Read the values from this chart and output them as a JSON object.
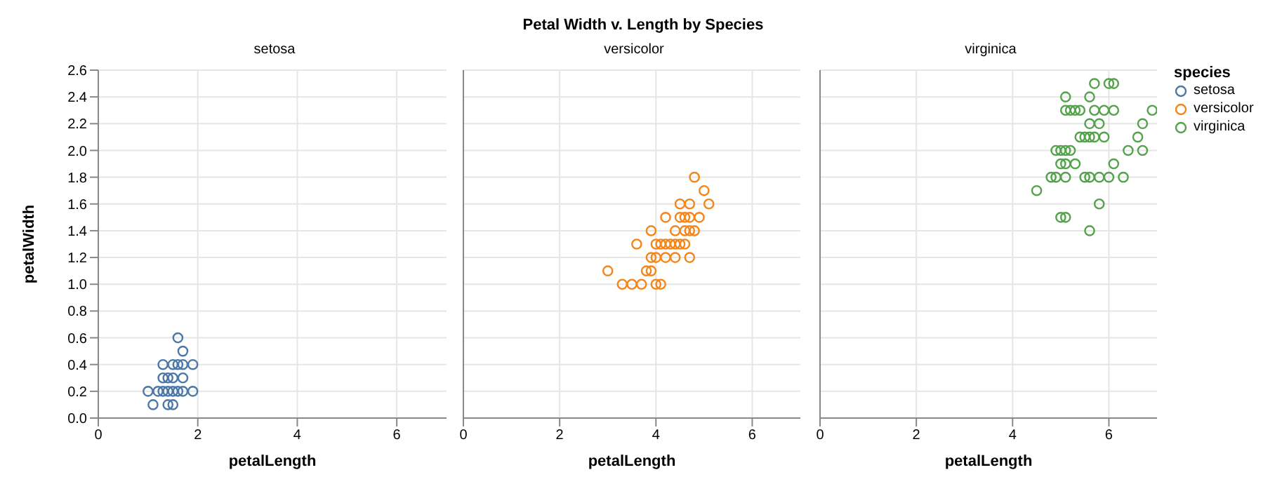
{
  "chart_data": [
    {
      "type": "scatter",
      "subtitle": "setosa",
      "xlabel": "petalLength",
      "ylabel": "petalWidth",
      "xlim": [
        0,
        7
      ],
      "xticks": [
        0,
        2,
        4,
        6
      ],
      "ylim": [
        0,
        2.6
      ],
      "yticks": [
        {
          "value": 0,
          "label": "0.0"
        },
        {
          "value": 0.2,
          "label": "0.2"
        },
        {
          "value": 0.4,
          "label": "0.4"
        },
        {
          "value": 0.6,
          "label": "0.6"
        },
        {
          "value": 0.8,
          "label": "0.8"
        },
        {
          "value": 1,
          "label": "1.0"
        },
        {
          "value": 1.2,
          "label": "1.2"
        },
        {
          "value": 1.4,
          "label": "1.4"
        },
        {
          "value": 1.6,
          "label": "1.6"
        },
        {
          "value": 1.8,
          "label": "1.8"
        },
        {
          "value": 2,
          "label": "2.0"
        },
        {
          "value": 2.2,
          "label": "2.2"
        },
        {
          "value": 2.4,
          "label": "2.4"
        },
        {
          "value": 2.6,
          "label": "2.6"
        }
      ],
      "grid": true,
      "marker": "circle",
      "series": [
        {
          "name": "setosa",
          "color": "#4c78a8",
          "x": [
            1.4,
            1.3,
            1.5,
            1.7,
            1.4,
            1.5,
            1.6,
            1.4,
            1.1,
            1.2,
            1.5,
            1.3,
            1.7,
            1.5,
            1.7,
            1.0,
            1.7,
            1.9,
            1.6,
            1.3,
            1.6,
            1.9
          ],
          "values": [
            0.2,
            0.2,
            0.2,
            0.4,
            0.3,
            0.1,
            0.2,
            0.1,
            0.1,
            0.2,
            0.4,
            0.4,
            0.3,
            0.3,
            0.2,
            0.2,
            0.5,
            0.2,
            0.4,
            0.3,
            0.6,
            0.4
          ]
        }
      ]
    },
    {
      "type": "scatter",
      "title": "Petal Width v. Length by Species",
      "subtitle": "versicolor",
      "xlabel": "petalLength",
      "xlim": [
        0,
        7
      ],
      "xticks": [
        0,
        2,
        4,
        6
      ],
      "ylim": [
        0,
        2.6
      ],
      "yticks": [
        0,
        0.2,
        0.4,
        0.6,
        0.8,
        1,
        1.2,
        1.4,
        1.6,
        1.8,
        2,
        2.2,
        2.4,
        2.6
      ],
      "tick_labels": "x",
      "grid": true,
      "marker": "circle",
      "series": [
        {
          "name": "versicolor",
          "color": "#f58518",
          "x": [
            4.7,
            4.5,
            4.9,
            4.0,
            4.6,
            4.5,
            4.7,
            3.3,
            4.6,
            3.9,
            3.5,
            4.2,
            4.0,
            3.6,
            4.4,
            4.1,
            3.9,
            4.8,
            4.7,
            4.3,
            4.8,
            5.0,
            3.8,
            3.7,
            3.9,
            5.1,
            4.5,
            4.7,
            4.4,
            4.1,
            4.4,
            4.6,
            4.0,
            4.2,
            4.2,
            3.0
          ],
          "values": [
            1.4,
            1.5,
            1.5,
            1.3,
            1.5,
            1.3,
            1.6,
            1.0,
            1.3,
            1.4,
            1.0,
            1.5,
            1.0,
            1.3,
            1.4,
            1.0,
            1.1,
            1.8,
            1.2,
            1.3,
            1.4,
            1.7,
            1.1,
            1.0,
            1.2,
            1.6,
            1.6,
            1.5,
            1.3,
            1.3,
            1.2,
            1.4,
            1.2,
            1.3,
            1.2,
            1.1
          ]
        }
      ]
    },
    {
      "type": "scatter",
      "subtitle": "virginica",
      "xlabel": "petalLength",
      "xlim": [
        0,
        7
      ],
      "xticks": [
        0,
        2,
        4,
        6
      ],
      "ylim": [
        0,
        2.6
      ],
      "yticks": [
        0,
        0.2,
        0.4,
        0.6,
        0.8,
        1,
        1.2,
        1.4,
        1.6,
        1.8,
        2,
        2.2,
        2.4,
        2.6
      ],
      "tick_labels": "x",
      "grid": true,
      "marker": "circle",
      "legend": "right",
      "legend_title": "species",
      "series": [
        {
          "name": "virginica",
          "color": "#54a24b",
          "x": [
            6.0,
            5.1,
            5.9,
            5.6,
            5.8,
            6.6,
            4.5,
            6.3,
            5.8,
            6.1,
            5.1,
            5.3,
            5.5,
            5.0,
            5.1,
            5.3,
            5.5,
            6.7,
            6.9,
            5.0,
            5.7,
            4.9,
            6.7,
            4.9,
            5.7,
            6.0,
            4.8,
            5.6,
            5.8,
            6.1,
            6.4,
            5.6,
            5.1,
            5.6,
            6.1,
            5.6,
            5.4,
            5.1,
            5.9,
            5.7,
            5.2,
            5.0,
            5.2,
            5.4,
            5.1
          ],
          "values": [
            2.5,
            1.9,
            2.1,
            1.8,
            2.2,
            2.1,
            1.7,
            1.8,
            1.8,
            2.5,
            2.0,
            1.9,
            2.1,
            2.0,
            2.4,
            2.3,
            1.8,
            2.2,
            2.3,
            1.5,
            2.3,
            2.0,
            2.0,
            1.8,
            2.1,
            1.8,
            1.8,
            2.1,
            1.6,
            1.9,
            2.0,
            2.2,
            1.5,
            1.4,
            2.3,
            2.4,
            2.1,
            2.3,
            2.3,
            2.5,
            2.3,
            1.9,
            2.0,
            2.3,
            1.8
          ]
        }
      ]
    }
  ]
}
